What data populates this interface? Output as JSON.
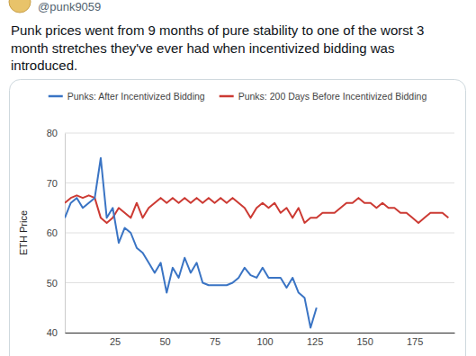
{
  "tweet": {
    "handle": "@punk9059",
    "text_lines": [
      "Punk prices went from 9 months of pure stability to one of the worst 3",
      "month stretches they've ever had when incentivized bidding was",
      "introduced."
    ]
  },
  "chart_data": {
    "type": "line",
    "y_label": "ETH Price",
    "legend": "top",
    "grid": true,
    "xlim": [
      0,
      195
    ],
    "xticks": [
      25,
      50,
      75,
      100,
      125,
      150,
      175
    ],
    "ylim": [
      40,
      80
    ],
    "yticks": [
      40,
      50,
      60,
      70,
      80
    ],
    "x": [
      0,
      3,
      6,
      9,
      12,
      15,
      18,
      21,
      24,
      27,
      30,
      33,
      36,
      39,
      42,
      45,
      48,
      51,
      54,
      57,
      60,
      63,
      66,
      69,
      72,
      75,
      78,
      81,
      84,
      87,
      90,
      93,
      96,
      99,
      102,
      105,
      108,
      111,
      114,
      117,
      120,
      123,
      126,
      129,
      132,
      135,
      138,
      141,
      144,
      147,
      150,
      153,
      156,
      159,
      162,
      165,
      168,
      171,
      174,
      177,
      180,
      183,
      186,
      189,
      192
    ],
    "series": [
      {
        "name": "Punks: After Incentivized Bidding",
        "color": "#3a74c4",
        "values": [
          63,
          66,
          67,
          65,
          66,
          67,
          75,
          63,
          65,
          58,
          61,
          60,
          57,
          56,
          54,
          52,
          54,
          48,
          53,
          51,
          55,
          52,
          54,
          50,
          49.5,
          49.5,
          49.5,
          49.5,
          50,
          51,
          53,
          51.5,
          51,
          53,
          51,
          51,
          51,
          49,
          51,
          48,
          47,
          41,
          45,
          null,
          null,
          null,
          null,
          null,
          null,
          null,
          null,
          null,
          null,
          null,
          null,
          null,
          null,
          null,
          null,
          null,
          null,
          null,
          null,
          null,
          null
        ]
      },
      {
        "name": "Punks: 200 Days Before Incentivized Bidding",
        "color": "#cc3a33",
        "values": [
          66,
          67,
          67.5,
          67,
          67.5,
          67,
          63,
          62,
          63,
          65,
          64,
          63,
          66,
          63,
          65,
          66,
          67,
          66,
          67,
          66,
          67,
          66,
          67,
          66,
          67,
          66,
          67,
          66,
          67,
          66,
          65,
          63,
          65,
          66,
          65,
          66,
          64,
          65,
          63,
          65,
          62,
          63,
          63,
          64,
          64,
          64,
          65,
          66,
          66,
          67,
          66,
          66,
          65,
          66,
          65,
          65,
          64,
          64,
          63,
          62,
          63,
          64,
          64,
          64,
          63
        ]
      }
    ]
  }
}
